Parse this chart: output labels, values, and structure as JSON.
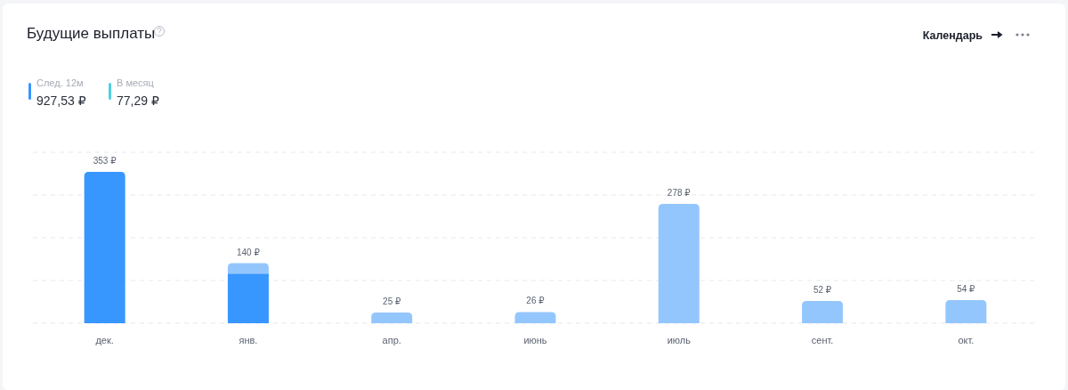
{
  "chart_data": {
    "type": "bar",
    "title": "Будущие выплаты",
    "stacked": true,
    "categories": [
      "дек.",
      "янв.",
      "апр.",
      "июнь",
      "июль",
      "сент.",
      "окт."
    ],
    "series": [
      {
        "color": "#3797ff",
        "values": [
          353,
          116,
          null,
          null,
          null,
          null,
          null
        ],
        "value_labels": [
          "353 ₽",
          null,
          null,
          null,
          null,
          null,
          null
        ]
      },
      {
        "color": "#94c6fe",
        "values": [
          null,
          24,
          25,
          26,
          278,
          52,
          54
        ],
        "value_labels": [
          null,
          null,
          "25 ₽",
          "26 ₽",
          "278 ₽",
          "52 ₽",
          "54 ₽"
        ]
      }
    ],
    "totals": [
      null,
      "140 ₽",
      null,
      null,
      null,
      null,
      null
    ],
    "tick_labels": "x",
    "grid": "y",
    "annotations": [
      "След. 12м",
      "927,53 ₽",
      "В месяц",
      "77,29 ₽",
      "Календарь"
    ]
  }
}
